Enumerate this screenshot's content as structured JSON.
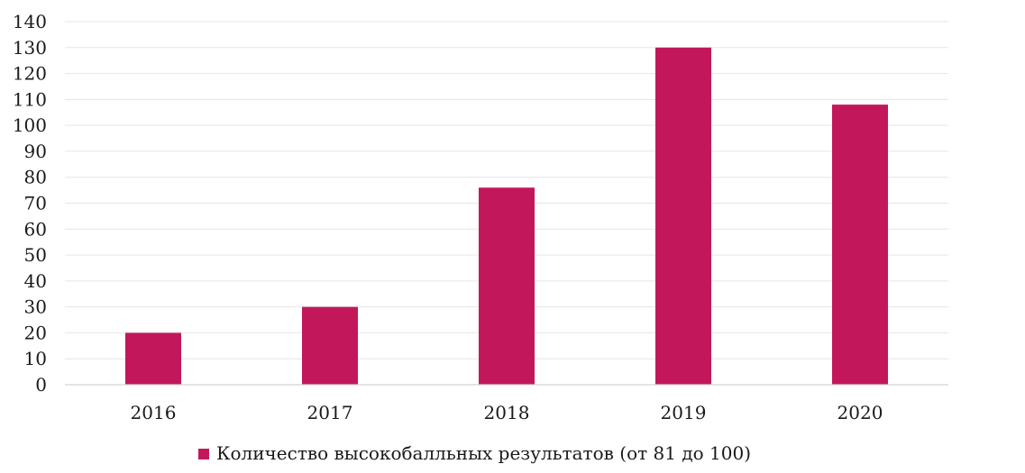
{
  "chart_data": {
    "type": "bar",
    "title": "",
    "xlabel": "",
    "ylabel": "",
    "categories": [
      "2016",
      "2017",
      "2018",
      "2019",
      "2020"
    ],
    "series": [
      {
        "name": "Количество высокобалльных результатов (от 81 до 100)",
        "values": [
          20,
          30,
          76,
          130,
          108
        ],
        "color": "#c2185b"
      }
    ],
    "ylim": [
      0,
      140
    ],
    "yticks": [
      0,
      10,
      20,
      30,
      40,
      50,
      60,
      70,
      80,
      90,
      100,
      110,
      120,
      130,
      140
    ],
    "grid": true,
    "legend_position": "bottom"
  }
}
